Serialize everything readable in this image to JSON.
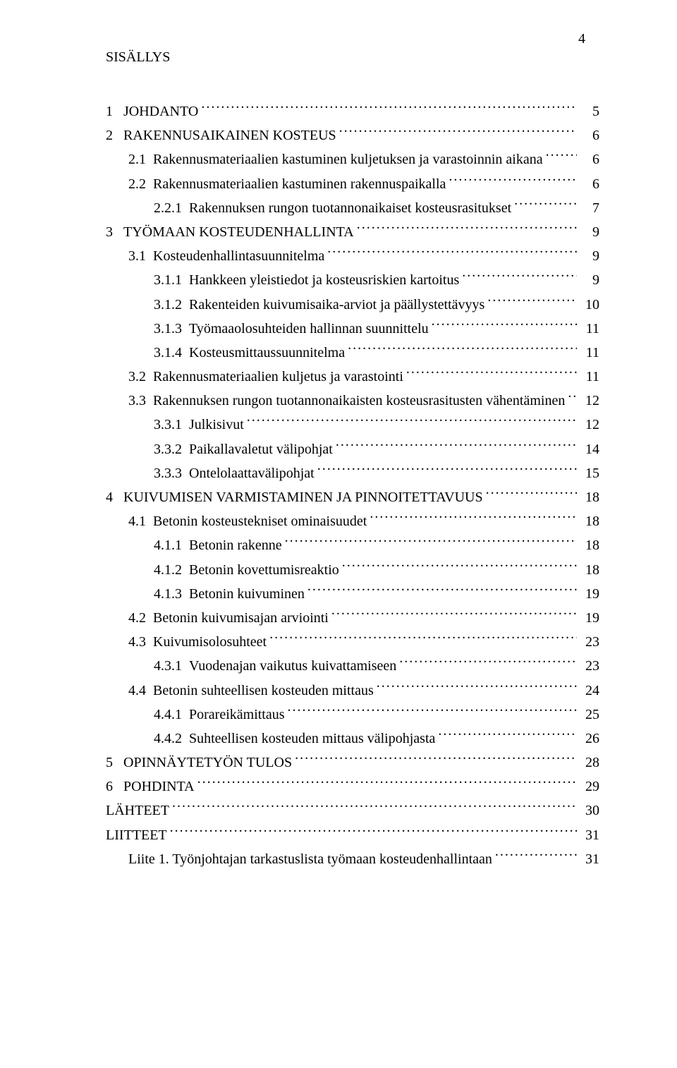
{
  "page_number": "4",
  "title": "SISÄLLYS",
  "font": {
    "family": "Times New Roman",
    "size_pt": 15,
    "color": "#000000"
  },
  "background_color": "#ffffff",
  "leader_char": ".",
  "toc": [
    {
      "indent": 0,
      "label": "1",
      "title": "JOHDANTO",
      "page": "5"
    },
    {
      "indent": 0,
      "label": "2",
      "title": "RAKENNUSAIKAINEN KOSTEUS",
      "page": "6"
    },
    {
      "indent": 1,
      "label": "2.1",
      "title": "Rakennusmateriaalien kastuminen kuljetuksen ja varastoinnin aikana",
      "page": "6"
    },
    {
      "indent": 1,
      "label": "2.2",
      "title": "Rakennusmateriaalien kastuminen rakennuspaikalla",
      "page": "6"
    },
    {
      "indent": 2,
      "label": "2.2.1",
      "title": "Rakennuksen rungon tuotannonaikaiset kosteusrasitukset",
      "page": "7"
    },
    {
      "indent": 0,
      "label": "3",
      "title": "TYÖMAAN KOSTEUDENHALLINTA",
      "page": "9"
    },
    {
      "indent": 1,
      "label": "3.1",
      "title": "Kosteudenhallintasuunnitelma",
      "page": "9"
    },
    {
      "indent": 2,
      "label": "3.1.1",
      "title": "Hankkeen yleistiedot ja kosteusriskien kartoitus",
      "page": "9"
    },
    {
      "indent": 2,
      "label": "3.1.2",
      "title": "Rakenteiden kuivumisaika-arviot ja päällystettävyys",
      "page": "10"
    },
    {
      "indent": 2,
      "label": "3.1.3",
      "title": "Työmaaolosuhteiden hallinnan suunnittelu",
      "page": "11"
    },
    {
      "indent": 2,
      "label": "3.1.4",
      "title": "Kosteusmittaussuunnitelma",
      "page": "11"
    },
    {
      "indent": 1,
      "label": "3.2",
      "title": "Rakennusmateriaalien kuljetus ja varastointi",
      "page": "11"
    },
    {
      "indent": 1,
      "label": "3.3",
      "title": "Rakennuksen rungon tuotannonaikaisten kosteusrasitusten vähentäminen",
      "page": "12"
    },
    {
      "indent": 2,
      "label": "3.3.1",
      "title": "Julkisivut",
      "page": "12"
    },
    {
      "indent": 2,
      "label": "3.3.2",
      "title": "Paikallavaletut välipohjat",
      "page": "14"
    },
    {
      "indent": 2,
      "label": "3.3.3",
      "title": "Ontelolaattavälipohjat",
      "page": "15"
    },
    {
      "indent": 0,
      "label": "4",
      "title": "KUIVUMISEN VARMISTAMINEN JA PINNOITETTAVUUS",
      "page": "18"
    },
    {
      "indent": 1,
      "label": "4.1",
      "title": "Betonin kosteustekniset ominaisuudet",
      "page": "18"
    },
    {
      "indent": 2,
      "label": "4.1.1",
      "title": "Betonin rakenne",
      "page": "18"
    },
    {
      "indent": 2,
      "label": "4.1.2",
      "title": "Betonin kovettumisreaktio",
      "page": "18"
    },
    {
      "indent": 2,
      "label": "4.1.3",
      "title": "Betonin kuivuminen",
      "page": "19"
    },
    {
      "indent": 1,
      "label": "4.2",
      "title": "Betonin kuivumisajan arviointi",
      "page": "19"
    },
    {
      "indent": 1,
      "label": "4.3",
      "title": "Kuivumisolosuhteet",
      "page": "23"
    },
    {
      "indent": 2,
      "label": "4.3.1",
      "title": "Vuodenajan vaikutus kuivattamiseen",
      "page": "23"
    },
    {
      "indent": 1,
      "label": "4.4",
      "title": "Betonin suhteellisen kosteuden mittaus",
      "page": "24"
    },
    {
      "indent": 2,
      "label": "4.4.1",
      "title": "Porareikämittaus",
      "page": "25"
    },
    {
      "indent": 2,
      "label": "4.4.2",
      "title": "Suhteellisen kosteuden mittaus välipohjasta",
      "page": "26"
    },
    {
      "indent": 0,
      "label": "5",
      "title": "OPINNÄYTETYÖN TULOS",
      "page": "28"
    },
    {
      "indent": 0,
      "label": "6",
      "title": "POHDINTA",
      "page": "29"
    },
    {
      "indent": 0,
      "label": "",
      "title": "LÄHTEET",
      "page": "30"
    },
    {
      "indent": 0,
      "label": "",
      "title": "LIITTEET",
      "page": "31"
    },
    {
      "indent": 1,
      "label": "",
      "title": "Liite 1. Työnjohtajan tarkastuslista työmaan kosteudenhallintaan",
      "page": "31"
    }
  ]
}
